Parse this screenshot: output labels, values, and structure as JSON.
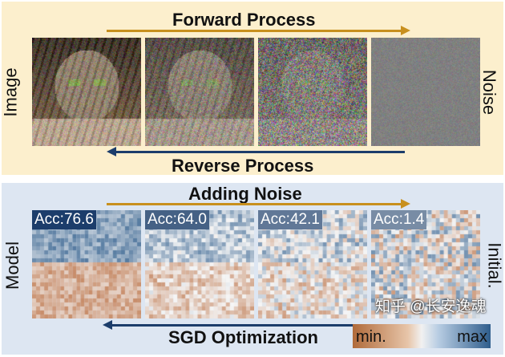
{
  "top": {
    "title_forward": "Forward Process",
    "title_reverse": "Reverse Process",
    "left_label": "Image",
    "right_label": "Noise",
    "noise_levels": [
      0,
      0.35,
      0.7,
      1
    ]
  },
  "bottom": {
    "title_top": "Adding Noise",
    "title_bottom": "SGD Optimization",
    "left_label": "Model",
    "right_label": "Initial.",
    "panels": [
      {
        "acc": "Acc:76.6",
        "noise": 0
      },
      {
        "acc": "Acc:64.0",
        "noise": 0.45
      },
      {
        "acc": "Acc:42.1",
        "noise": 0.75
      },
      {
        "acc": "Acc:1.4",
        "noise": 1
      }
    ],
    "legend": {
      "min": "min.",
      "max": "max"
    }
  },
  "watermark": "知乎 @长安逸魂",
  "colors": {
    "forward_arrow": "#c8901e",
    "reverse_arrow": "#1c3d6b",
    "top_bg": "#fcefcd",
    "bottom_bg": "#dde6f2",
    "neg": "#b8693a",
    "pos": "#2f5d8c"
  }
}
